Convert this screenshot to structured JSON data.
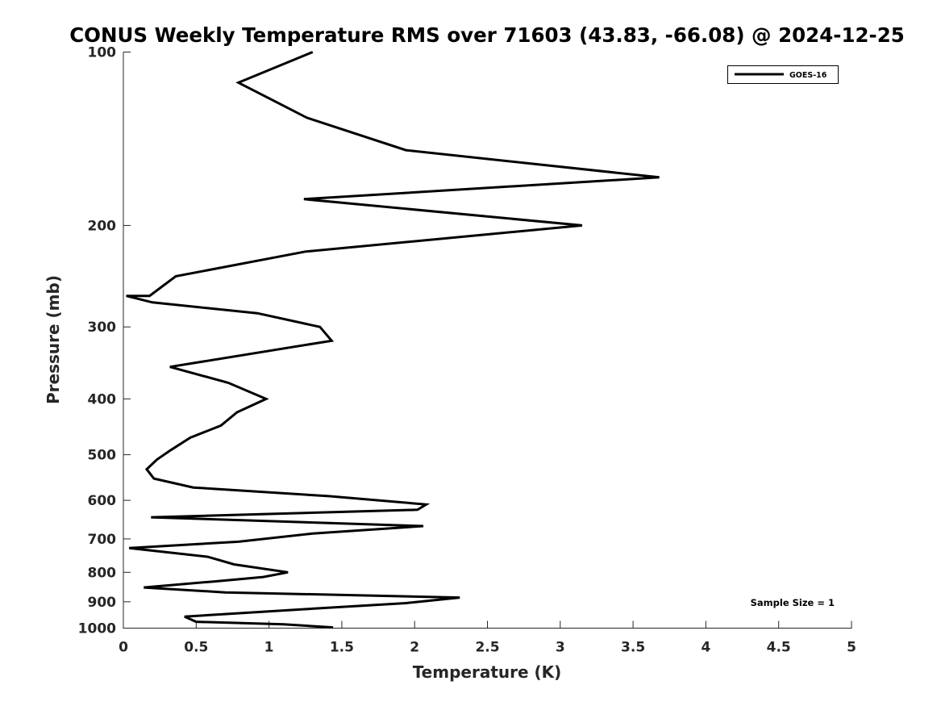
{
  "chart_data": {
    "type": "line",
    "title": "CONUS Weekly Temperature RMS over 71603 (43.83, -66.08) @ 2024-12-25",
    "xlabel": "Temperature (K)",
    "ylabel": "Pressure (mb)",
    "xlim": [
      0,
      5
    ],
    "ylim": [
      1000,
      100
    ],
    "y_scale": "log",
    "y_reversed": true,
    "x_ticks": [
      "0",
      "0.5",
      "1",
      "1.5",
      "2",
      "2.5",
      "3",
      "3.5",
      "4",
      "4.5",
      "5"
    ],
    "y_ticks": [
      "100",
      "200",
      "300",
      "400",
      "500",
      "600",
      "700",
      "800",
      "900",
      "1000"
    ],
    "grid": false,
    "legend": {
      "position": "top-right",
      "entries": [
        "GOES-16"
      ]
    },
    "annotation": "Sample Size = 1",
    "annotation_position": "bottom-right",
    "series": [
      {
        "name": "GOES-16",
        "color": "#000000",
        "x": [
          1.3,
          0.79,
          1.26,
          1.94,
          3.68,
          1.24,
          3.15,
          1.25,
          0.36,
          0.18,
          0.02,
          0.2,
          0.92,
          1.35,
          1.43,
          0.32,
          0.72,
          0.98,
          0.78,
          0.67,
          0.46,
          0.33,
          0.23,
          0.16,
          0.21,
          0.48,
          1.41,
          2.08,
          2.02,
          0.19,
          2.06,
          1.3,
          0.79,
          0.04,
          0.58,
          0.76,
          1.13,
          0.96,
          0.62,
          0.14,
          0.7,
          2.31,
          1.94,
          1.31,
          0.42,
          0.5,
          1.1,
          1.44
        ],
        "y": [
          100,
          113,
          130,
          148,
          165,
          180,
          200,
          222,
          245,
          265,
          265,
          272,
          284,
          300,
          317,
          352,
          375,
          400,
          422,
          445,
          467,
          490,
          510,
          530,
          550,
          570,
          590,
          610,
          623,
          642,
          665,
          685,
          708,
          726,
          752,
          775,
          800,
          815,
          830,
          850,
          867,
          885,
          905,
          925,
          955,
          975,
          985,
          997
        ]
      }
    ]
  }
}
